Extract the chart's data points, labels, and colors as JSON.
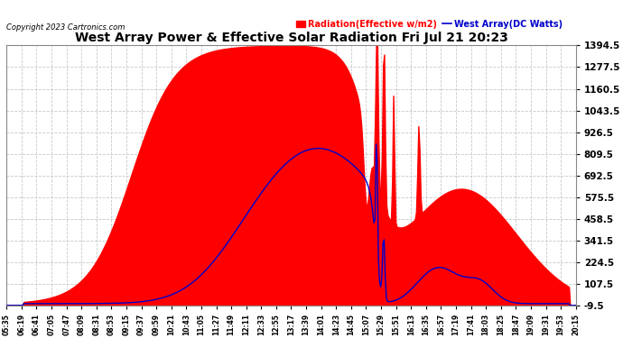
{
  "title": "West Array Power & Effective Solar Radiation Fri Jul 21 20:23",
  "copyright": "Copyright 2023 Cartronics.com",
  "legend_radiation": "Radiation(Effective w/m2)",
  "legend_west": "West Array(DC Watts)",
  "ylabel_right_ticks": [
    1394.5,
    1277.5,
    1160.5,
    1043.5,
    926.5,
    809.5,
    692.5,
    575.5,
    458.5,
    341.5,
    224.5,
    107.5,
    -9.5
  ],
  "ymin": -9.5,
  "ymax": 1394.5,
  "bg_color": "#ffffff",
  "plot_bg_color": "#ffffff",
  "grid_color": "#c8c8c8",
  "radiation_color": "#ff0000",
  "west_array_color": "#0000cc",
  "title_color": "#000000",
  "copyright_color": "#000000",
  "x_tick_labels": [
    "05:35",
    "06:19",
    "06:41",
    "07:05",
    "07:47",
    "08:09",
    "08:31",
    "08:53",
    "09:15",
    "09:37",
    "09:59",
    "10:21",
    "10:43",
    "11:05",
    "11:27",
    "11:49",
    "12:11",
    "12:33",
    "12:55",
    "13:17",
    "13:39",
    "14:01",
    "14:23",
    "14:45",
    "15:07",
    "15:29",
    "15:51",
    "16:13",
    "16:35",
    "16:57",
    "17:19",
    "17:41",
    "18:03",
    "18:25",
    "18:47",
    "19:09",
    "19:31",
    "19:53",
    "20:15"
  ]
}
